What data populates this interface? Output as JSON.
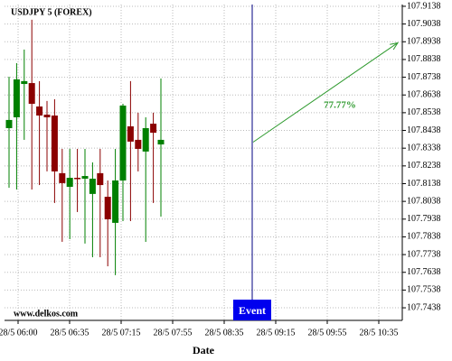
{
  "chart_data": {
    "type": "candlestick",
    "title": "USDJPY 5 (FOREX)",
    "x_label": "Date",
    "watermark": "www.delkos.com",
    "x_ticks": [
      "28/5 06:00",
      "28/5 06:35",
      "28/5 07:15",
      "28/5 07:55",
      "28/5 08:35",
      "28/5 09:15",
      "28/5 09:55",
      "28/5 10:35"
    ],
    "up_color": "#008000",
    "down_color": "#8b0000",
    "open": [
      107.8451,
      107.8512,
      107.87,
      107.8705,
      107.8573,
      107.8527,
      107.8522,
      107.8197,
      107.812,
      107.8171,
      107.8166,
      107.808,
      107.8197,
      107.8064,
      107.7917,
      107.8156,
      107.8461,
      107.8385,
      107.8319,
      107.8476,
      107.8359
    ],
    "high": [
      107.8741,
      107.8817,
      107.8894,
      107.9062,
      107.8716,
      107.8604,
      107.8614,
      107.8334,
      107.8334,
      107.8334,
      107.8334,
      107.8258,
      107.8334,
      107.8156,
      107.8334,
      107.8588,
      107.8716,
      107.8538,
      107.8512,
      107.8538,
      107.8731
    ],
    "low": [
      107.8115,
      107.8105,
      107.8385,
      107.8105,
      107.813,
      107.8207,
      107.8029,
      107.781,
      107.7825,
      107.7978,
      107.78,
      107.7723,
      107.7723,
      107.7672,
      107.7622,
      107.7927,
      107.7927,
      107.8207,
      107.781,
      107.8029,
      107.7952
    ],
    "close": [
      107.8497,
      107.8726,
      107.8716,
      107.8588,
      107.8522,
      107.8512,
      107.8207,
      107.8141,
      107.8171,
      107.8166,
      107.8181,
      107.8166,
      107.813,
      107.7937,
      107.8156,
      107.8578,
      107.8375,
      107.8334,
      107.8451,
      107.8425,
      107.8385
    ],
    "event": {
      "label": "Event",
      "color": "#0000ee"
    },
    "projection": {
      "start": 107.8372,
      "end": 107.8932,
      "label": "77.77%",
      "color": "#2e9a2e"
    },
    "ylim": [
      107.7367,
      107.9148
    ],
    "yticks": [
      107.7438,
      107.7538,
      107.7638,
      107.7738,
      107.7838,
      107.7938,
      107.8038,
      107.8138,
      107.8238,
      107.8338,
      107.8438,
      107.8538,
      107.8638,
      107.8738,
      107.8838,
      107.8938,
      107.9038,
      107.9138
    ],
    "grid": true
  }
}
